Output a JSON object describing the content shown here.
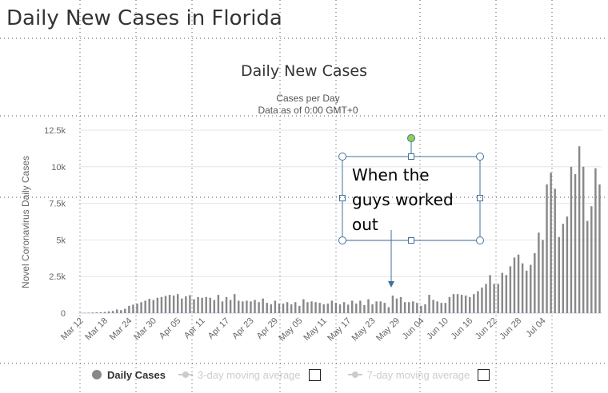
{
  "page": {
    "heading": "Daily New Cases in Florida"
  },
  "annotation": {
    "lines": [
      "When the",
      "guys worked",
      "out"
    ]
  },
  "legend": {
    "items": [
      {
        "label": "Daily Cases",
        "state": "active",
        "color": "#888888"
      },
      {
        "label": "3-day moving average",
        "state": "inactive",
        "color": "#cccccc"
      },
      {
        "label": "7-day moving average",
        "state": "inactive",
        "color": "#cccccc"
      }
    ]
  },
  "chart_data": {
    "type": "bar",
    "title": "Daily New Cases",
    "subtitle": [
      "Cases per Day",
      "Data as of 0:00 GMT+0"
    ],
    "ylabel": "Novel Coronavirus Daily Cases",
    "xlabel": "",
    "ylim": [
      0,
      12500
    ],
    "yticks": [
      0,
      2500,
      5000,
      7500,
      10000,
      12500
    ],
    "ytick_labels": [
      "0",
      "2.5k",
      "5k",
      "7.5k",
      "10k",
      "12.5k"
    ],
    "xtick_labels": [
      "Mar 12",
      "Mar 18",
      "Mar 24",
      "Mar 30",
      "Apr 05",
      "Apr 11",
      "Apr 17",
      "Apr 23",
      "Apr 29",
      "May 05",
      "May 11",
      "May 17",
      "May 23",
      "May 29",
      "Jun 04",
      "Jun 10",
      "Jun 16",
      "Jun 22",
      "Jun 28",
      "Jul 04"
    ],
    "xtick_every": 6,
    "grid": true,
    "legend_position": "bottom",
    "color": "#888888",
    "series": [
      {
        "name": "Daily Cases",
        "values": [
          20,
          25,
          30,
          40,
          50,
          60,
          80,
          120,
          150,
          250,
          200,
          300,
          500,
          580,
          650,
          750,
          850,
          980,
          900,
          1050,
          1100,
          1180,
          1250,
          1200,
          1300,
          1000,
          1150,
          1230,
          950,
          1100,
          1050,
          1100,
          1050,
          900,
          1250,
          800,
          1100,
          900,
          1300,
          850,
          800,
          850,
          800,
          900,
          750,
          1000,
          700,
          600,
          850,
          650,
          650,
          750,
          600,
          750,
          500,
          950,
          750,
          800,
          750,
          700,
          600,
          650,
          850,
          700,
          600,
          750,
          580,
          850,
          650,
          850,
          550,
          950,
          600,
          800,
          800,
          700,
          400,
          1200,
          1000,
          1100,
          750,
          750,
          800,
          700,
          500,
          600,
          1250,
          900,
          800,
          700,
          700,
          1100,
          1300,
          1300,
          1250,
          1200,
          1100,
          1300,
          1500,
          1750,
          2000,
          2600,
          2000,
          2000,
          2750,
          2600,
          3200,
          3800,
          4000,
          3400,
          2900,
          3300,
          4100,
          5500,
          5000,
          8800,
          9600,
          8500,
          5200,
          6100,
          6600,
          10000,
          9500,
          11400,
          10000,
          6300,
          7300,
          9900,
          8800
        ]
      }
    ]
  }
}
